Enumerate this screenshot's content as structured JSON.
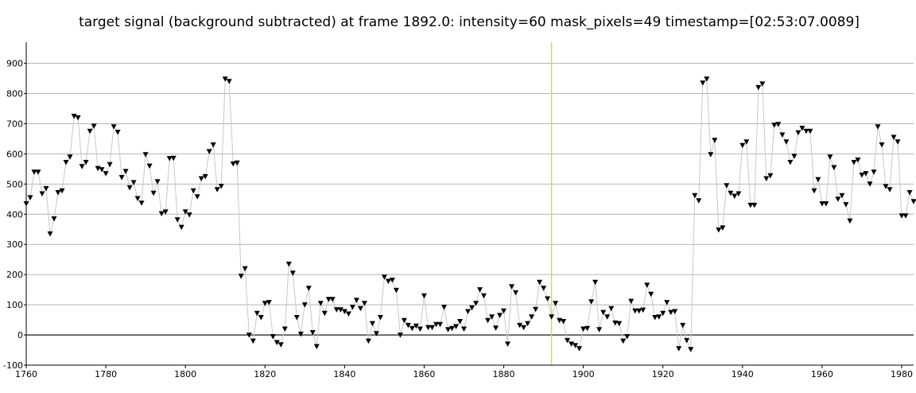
{
  "chart_data": {
    "type": "line",
    "title": "target signal (background subtracted) at frame 1892.0: intensity=60 mask_pixels=49 timestamp=[02:53:07.0089]",
    "xlabel": "",
    "ylabel": "",
    "xlim": [
      1760,
      1983
    ],
    "ylim": [
      -100,
      970
    ],
    "x_ticks": [
      1760,
      1780,
      1800,
      1820,
      1840,
      1860,
      1880,
      1900,
      1920,
      1940,
      1960,
      1980
    ],
    "y_ticks": [
      -100,
      0,
      100,
      200,
      300,
      400,
      500,
      600,
      700,
      800,
      900
    ],
    "grid": true,
    "current_frame": 1892,
    "colors": {
      "line": "#c8c8c8",
      "marker": "#000000",
      "grid": "#b4b4b4",
      "zero_line": "#000000",
      "frame_marker": "#c8d87a"
    },
    "series": [
      {
        "marker": "triangle-down",
        "x_start": 1760,
        "x_step": 1,
        "values": [
          435,
          455,
          540,
          540,
          468,
          485,
          335,
          385,
          472,
          478,
          572,
          590,
          725,
          720,
          558,
          572,
          675,
          692,
          552,
          548,
          535,
          565,
          690,
          672,
          522,
          542,
          488,
          505,
          452,
          437,
          598,
          560,
          470,
          508,
          402,
          408,
          585,
          586,
          382,
          357,
          408,
          398,
          478,
          458,
          518,
          525,
          608,
          630,
          482,
          493,
          848,
          840,
          567,
          570,
          195,
          220,
          0,
          -20,
          72,
          58,
          105,
          108,
          -5,
          -25,
          -32,
          20,
          235,
          205,
          58,
          3,
          100,
          155,
          8,
          -38,
          105,
          72,
          118,
          118,
          84,
          84,
          78,
          70,
          92,
          115,
          88,
          105,
          -20,
          38,
          5,
          58,
          192,
          178,
          182,
          148,
          0,
          48,
          32,
          22,
          30,
          20,
          130,
          25,
          25,
          35,
          35,
          92,
          18,
          22,
          28,
          45,
          20,
          78,
          90,
          105,
          150,
          130,
          48,
          60,
          23,
          65,
          80,
          -30,
          160,
          140,
          32,
          25,
          38,
          60,
          85,
          175,
          155,
          120,
          60,
          105,
          48,
          45,
          -18,
          -30,
          -35,
          -45,
          20,
          22,
          110,
          175,
          18,
          75,
          60,
          88,
          40,
          38,
          -20,
          -5,
          112,
          80,
          80,
          83,
          165,
          135,
          58,
          60,
          72,
          108,
          75,
          78,
          -45,
          32,
          -18,
          -48,
          462,
          445,
          835,
          848,
          598,
          645,
          348,
          355,
          495,
          470,
          460,
          468,
          628,
          640,
          430,
          430,
          820,
          832,
          518,
          528,
          695,
          698,
          663,
          640,
          572,
          592,
          670,
          685,
          675,
          675,
          478,
          515,
          435,
          435,
          590,
          555,
          450,
          462,
          432,
          378,
          572,
          580,
          530,
          535,
          500,
          540,
          690,
          630,
          492,
          482,
          655,
          640,
          395,
          395,
          472,
          442
        ]
      }
    ]
  }
}
